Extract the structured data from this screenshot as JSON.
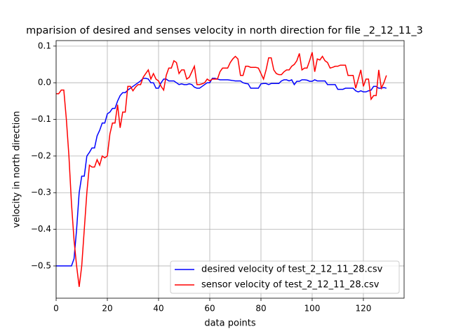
{
  "chart_data": {
    "type": "line",
    "title": "mparision of desired and senses velocity in north direction for file _2_12_11_3",
    "xlabel": "data points",
    "ylabel": "velocity in north direction",
    "x": [
      0,
      1,
      2,
      3,
      4,
      5,
      6,
      7,
      8,
      9,
      10,
      11,
      12,
      13,
      14,
      15,
      16,
      17,
      18,
      19,
      20,
      21,
      22,
      23,
      24,
      25,
      26,
      27,
      28,
      29,
      30,
      31,
      32,
      33,
      34,
      35,
      36,
      37,
      38,
      39,
      40,
      41,
      42,
      43,
      44,
      45,
      46,
      47,
      48,
      49,
      50,
      51,
      52,
      53,
      54,
      55,
      56,
      57,
      58,
      59,
      60,
      61,
      62,
      63,
      64,
      65,
      66,
      67,
      68,
      69,
      70,
      71,
      72,
      73,
      74,
      75,
      76,
      77,
      78,
      79,
      80,
      81,
      82,
      83,
      84,
      85,
      86,
      87,
      88,
      89,
      90,
      91,
      92,
      93,
      94,
      95,
      96,
      97,
      98,
      99,
      100,
      101,
      102,
      103,
      104,
      105,
      106,
      107,
      108,
      109,
      110,
      111,
      112,
      113,
      114,
      115,
      116,
      117,
      118,
      119,
      120,
      121,
      122,
      123,
      124,
      125,
      126,
      127,
      128,
      129
    ],
    "series": [
      {
        "name": "desired velocity of test_2_12_11_28.csv",
        "color": "#0000ff",
        "values": [
          -0.5,
          -0.5,
          -0.5,
          -0.5,
          -0.5,
          -0.5,
          -0.5,
          -0.48,
          -0.4,
          -0.3,
          -0.255,
          -0.255,
          -0.2,
          -0.19,
          -0.178,
          -0.178,
          -0.145,
          -0.13,
          -0.11,
          -0.11,
          -0.085,
          -0.08,
          -0.07,
          -0.07,
          -0.05,
          -0.035,
          -0.027,
          -0.027,
          -0.02,
          -0.015,
          -0.01,
          -0.005,
          0.0,
          0.005,
          0.012,
          0.012,
          0.01,
          0.0,
          0.0,
          -0.015,
          -0.015,
          0.0,
          0.01,
          0.01,
          0.005,
          0.005,
          0.005,
          0.0,
          -0.005,
          -0.003,
          -0.005,
          -0.005,
          -0.003,
          -0.005,
          -0.012,
          -0.015,
          -0.015,
          -0.01,
          -0.005,
          0.0,
          0.0,
          0.012,
          0.012,
          0.01,
          0.008,
          0.008,
          0.008,
          0.008,
          0.007,
          0.006,
          0.005,
          0.005,
          0.005,
          0.0,
          -0.002,
          -0.003,
          -0.015,
          -0.015,
          -0.015,
          -0.015,
          -0.003,
          -0.002,
          -0.002,
          -0.005,
          -0.002,
          -0.002,
          -0.002,
          -0.002,
          0.005,
          0.008,
          0.008,
          0.005,
          0.008,
          -0.005,
          0.004,
          0.004,
          0.008,
          0.008,
          0.007,
          0.004,
          0.004,
          0.008,
          0.005,
          0.005,
          0.005,
          0.005,
          -0.005,
          -0.005,
          -0.005,
          -0.005,
          -0.018,
          -0.018,
          -0.018,
          -0.015,
          -0.015,
          -0.015,
          -0.015,
          -0.022,
          -0.025,
          -0.022,
          -0.025,
          -0.025,
          -0.022,
          -0.02,
          -0.01,
          -0.01,
          -0.015,
          -0.015,
          -0.013,
          -0.015
        ]
      },
      {
        "name": "sensor velocity of test_2_12_11_28.csv",
        "color": "#ff0000",
        "values": [
          -0.03,
          -0.03,
          -0.02,
          -0.02,
          -0.1,
          -0.2,
          -0.33,
          -0.43,
          -0.5,
          -0.557,
          -0.5,
          -0.4,
          -0.3,
          -0.225,
          -0.23,
          -0.23,
          -0.21,
          -0.225,
          -0.2,
          -0.205,
          -0.2,
          -0.14,
          -0.11,
          -0.11,
          -0.06,
          -0.123,
          -0.08,
          -0.08,
          -0.01,
          -0.01,
          -0.022,
          -0.012,
          -0.005,
          -0.005,
          0.015,
          0.025,
          0.035,
          0.01,
          0.025,
          0.01,
          0.005,
          -0.01,
          -0.02,
          0.02,
          0.04,
          0.04,
          0.06,
          0.055,
          0.025,
          0.035,
          0.035,
          0.01,
          0.015,
          0.03,
          0.045,
          -0.005,
          -0.005,
          -0.003,
          0.0,
          0.01,
          0.005,
          0.01,
          0.01,
          0.01,
          0.03,
          0.04,
          0.04,
          0.04,
          0.055,
          0.065,
          0.072,
          0.065,
          0.02,
          0.02,
          0.045,
          0.045,
          0.042,
          0.042,
          0.042,
          0.04,
          0.025,
          0.01,
          0.035,
          0.068,
          0.068,
          0.035,
          0.025,
          0.022,
          0.022,
          0.03,
          0.035,
          0.035,
          0.045,
          0.05,
          0.06,
          0.08,
          0.035,
          0.04,
          0.04,
          0.06,
          0.083,
          0.03,
          0.065,
          0.062,
          0.072,
          0.06,
          0.055,
          0.04,
          0.042,
          0.045,
          0.045,
          0.048,
          0.048,
          0.048,
          0.02,
          0.02,
          0.02,
          -0.015,
          0.01,
          0.035,
          -0.01,
          0.01,
          0.01,
          -0.045,
          -0.035,
          -0.035,
          0.035,
          -0.015,
          0.0,
          0.02
        ]
      }
    ],
    "xlim": [
      0,
      135.9
    ],
    "ylim": [
      -0.588,
      0.115
    ],
    "xticks": [
      0,
      20,
      40,
      60,
      80,
      100,
      120
    ],
    "yticks": [
      {
        "value": -0.5,
        "label": "−0.5"
      },
      {
        "value": -0.4,
        "label": "−0.4"
      },
      {
        "value": -0.3,
        "label": "−0.3"
      },
      {
        "value": -0.2,
        "label": "−0.2"
      },
      {
        "value": -0.1,
        "label": "−0.1"
      },
      {
        "value": 0,
        "label": "0.0"
      },
      0.1
    ],
    "grid": true,
    "legend": "lower right"
  }
}
